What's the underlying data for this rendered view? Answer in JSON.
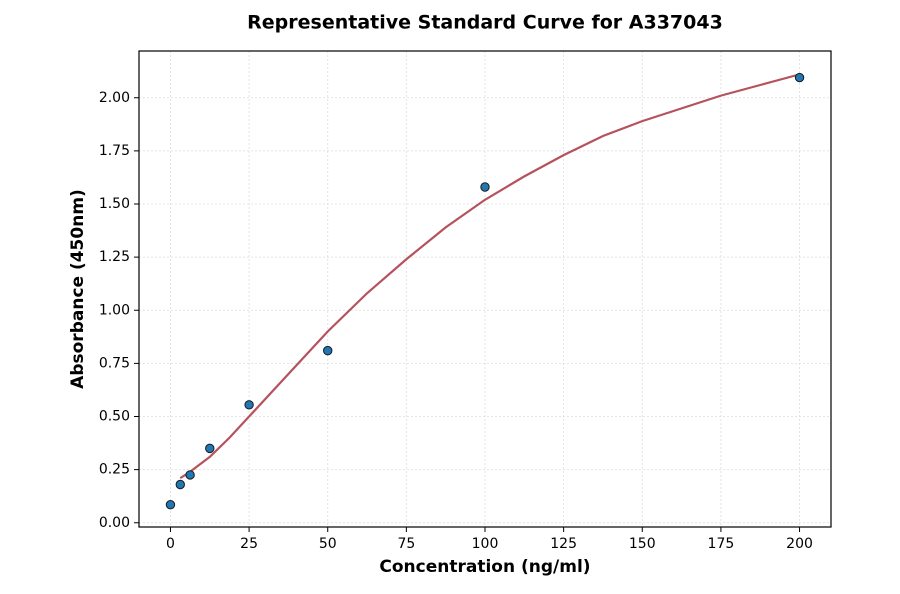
{
  "chart_data": {
    "type": "scatter",
    "title": "Representative Standard Curve for A337043",
    "x_label": "Concentration (ng/ml)",
    "y_label": "Absorbance (450nm)",
    "xlim": [
      -10,
      210
    ],
    "ylim": [
      -0.02,
      2.22
    ],
    "xticks": [
      0,
      25,
      50,
      75,
      100,
      125,
      150,
      175,
      200
    ],
    "yticks": [
      {
        "value": 0,
        "label": "0.00"
      },
      {
        "value": 0.25,
        "label": "0.25"
      },
      {
        "value": 0.5,
        "label": "0.50"
      },
      {
        "value": 0.75,
        "label": "0.75"
      },
      {
        "value": 1,
        "label": "1.00"
      },
      {
        "value": 1.25,
        "label": "1.25"
      },
      {
        "value": 1.5,
        "label": "1.50"
      },
      {
        "value": 1.75,
        "label": "1.75"
      },
      {
        "value": 2,
        "label": "2.00"
      }
    ],
    "grid": true,
    "series": [
      {
        "type": "line",
        "color": "#b5525c",
        "x": [
          3.125,
          6.25,
          12.5,
          18.75,
          25,
          37.5,
          50,
          62.5,
          75,
          87.5,
          100,
          112.5,
          125,
          137.5,
          150,
          162.5,
          175,
          187.5,
          200
        ],
        "values": [
          0.21,
          0.24,
          0.31,
          0.4,
          0.5,
          0.7,
          0.9,
          1.08,
          1.24,
          1.39,
          1.52,
          1.63,
          1.73,
          1.82,
          1.89,
          1.95,
          2.01,
          2.06,
          2.11
        ]
      },
      {
        "type": "scatter",
        "color": "#1f77b4",
        "x": [
          0,
          3.125,
          6.25,
          12.5,
          25,
          50,
          100,
          200
        ],
        "values": [
          0.085,
          0.18,
          0.225,
          0.35,
          0.555,
          0.81,
          1.58,
          2.095
        ]
      }
    ]
  }
}
